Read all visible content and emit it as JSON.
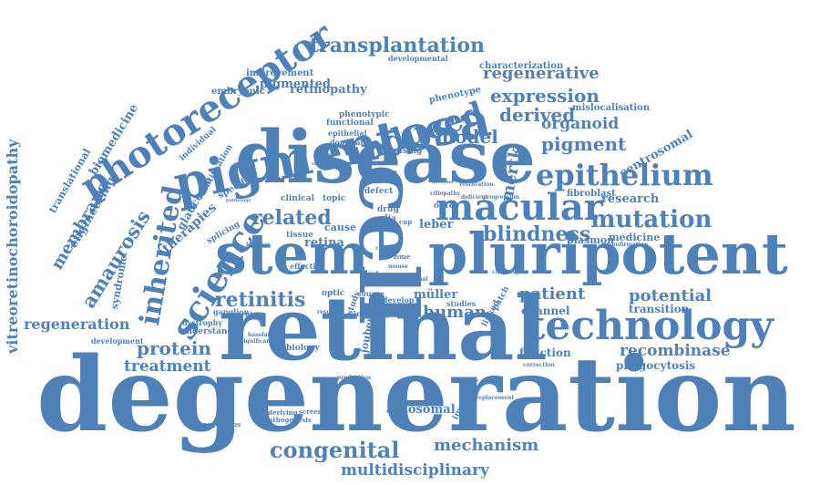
{
  "cloud": {
    "color": "#4f81b9",
    "words": [
      "degeneration",
      "retinal",
      "disease",
      "stem",
      "pluripotent",
      "cell",
      "pigmentosa",
      "photoreceptor",
      "technology",
      "epithelium",
      "macular",
      "induced",
      "science",
      "inherited",
      "mutation",
      "congenital",
      "blindness",
      "transplantation",
      "related",
      "retinitis",
      "expression",
      "protein",
      "regenerative",
      "derived",
      "model",
      "pigment",
      "mechanism",
      "multidisciplinary",
      "amaurosis",
      "vitreoretinochoroidopathy",
      "regeneration",
      "membrane",
      "recombinase",
      "potential",
      "human",
      "patient",
      "mertk",
      "organoid",
      "treatment",
      "autosomal",
      "retinopathy",
      "engineering",
      "biomedicine",
      "centrosomal",
      "research",
      "phagocytosis",
      "müller",
      "transition",
      "channel",
      "function",
      "therapies",
      "glaucoma",
      "syndrome",
      "translational",
      "medicine",
      "plasmon",
      "fibroblast",
      "mislocalisation",
      "characterization",
      "developmental",
      "improvement",
      "embryonic",
      "pigmented",
      "phenotype",
      "phenotypic",
      "functional",
      "epithelial",
      "dominant",
      "individual",
      "identification",
      "specific",
      "splicing",
      "clinical",
      "cause",
      "tissue",
      "retina",
      "leber",
      "outer",
      "glia",
      "drug",
      "effective",
      "ganglion",
      "dystrophy",
      "optic",
      "understand",
      "development",
      "biology",
      "joubert",
      "study",
      "source",
      "develop",
      "inducing",
      "studies",
      "patch",
      "linked",
      "causing",
      "defect",
      "topic",
      "restoration",
      "ciliopathy",
      "deficient",
      "progression",
      "significant",
      "underlying",
      "pathogenesis",
      "heterogeneous",
      "screening",
      "production",
      "correction",
      "replacement",
      "important",
      "confirmation",
      "challenge",
      "segment",
      "laminar",
      "basolateral",
      "result",
      "suffering",
      "pathology",
      "aberrant",
      "mouse",
      "zone",
      "cup",
      "visual",
      "cone",
      "rod"
    ]
  }
}
